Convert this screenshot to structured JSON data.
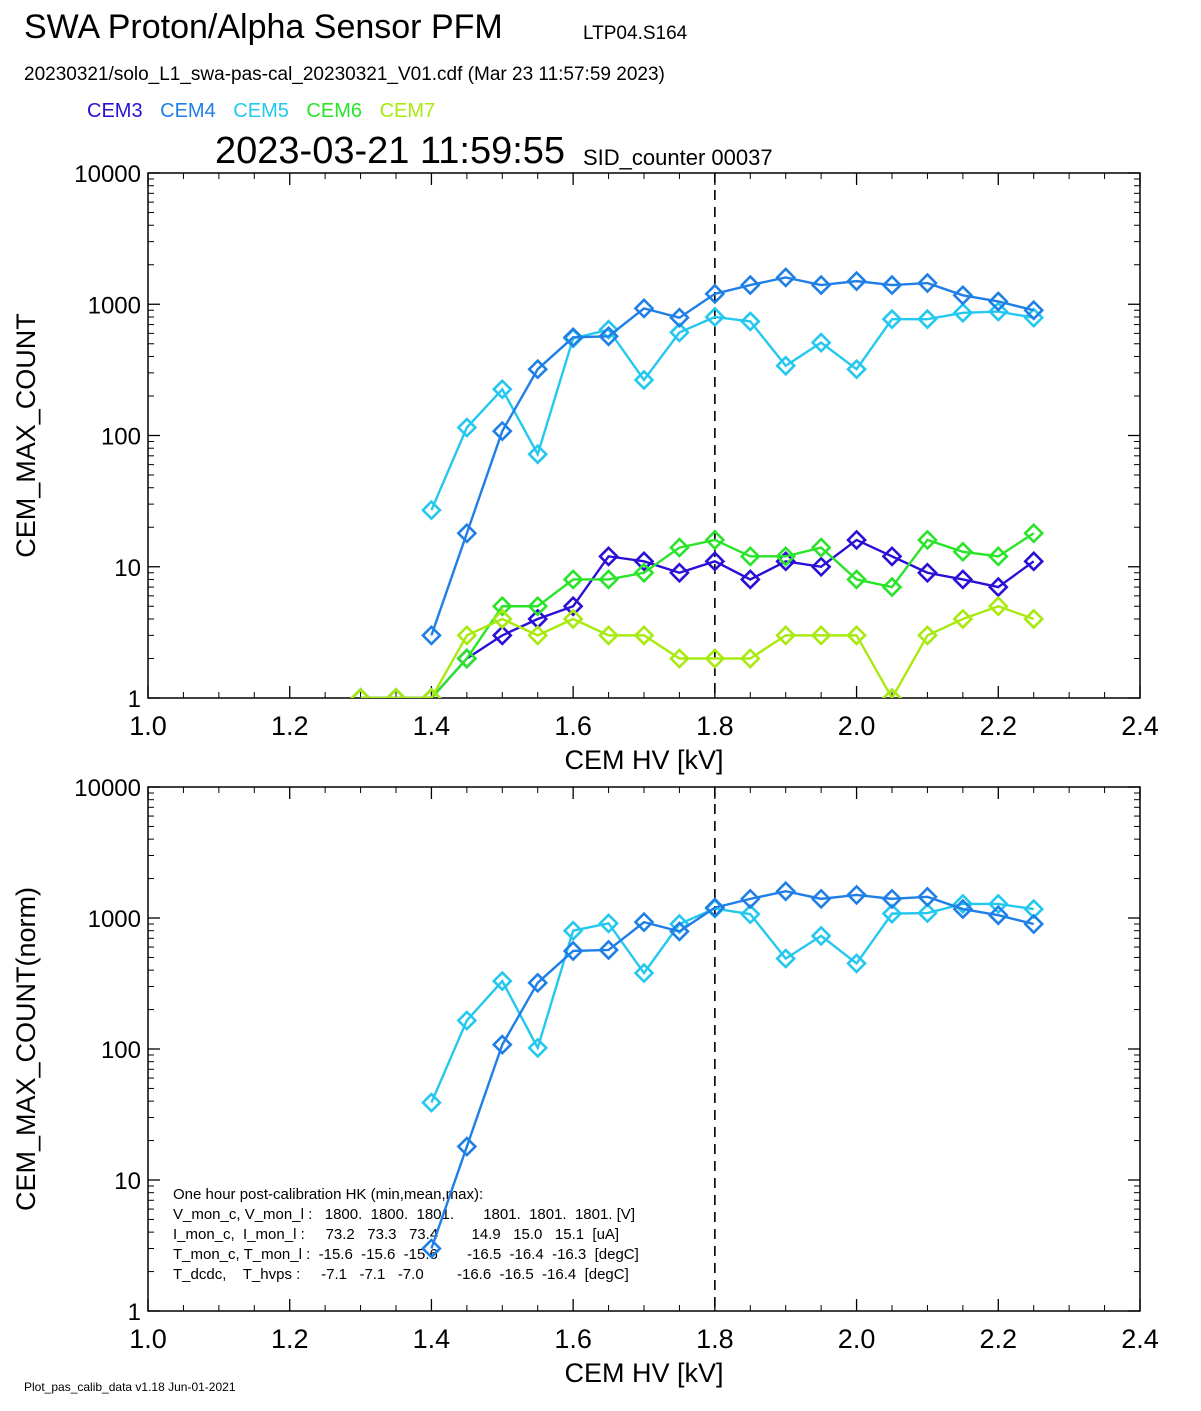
{
  "header": {
    "title": "SWA Proton/Alpha Sensor PFM",
    "run_id": "LTP04.S164",
    "file_line": "20230321/solo_L1_swa-pas-cal_20230321_V01.cdf  (Mar 23 11:57:59 2023)",
    "timestamp": "2023-03-21 11:59:55",
    "sid_counter": "SID_counter 00037"
  },
  "legend": [
    {
      "name": "CEM3",
      "color": "#2a10d6"
    },
    {
      "name": "CEM4",
      "color": "#1f7fe6"
    },
    {
      "name": "CEM5",
      "color": "#24c8ee"
    },
    {
      "name": "CEM6",
      "color": "#2ae42a"
    },
    {
      "name": "CEM7",
      "color": "#a8ea10"
    }
  ],
  "footer": "Plot_pas_calib_data v1.18 Jun-01-2021",
  "chart_data": [
    {
      "type": "line",
      "ylabel": "CEM_MAX_COUNT",
      "xlabel": "CEM HV [kV]",
      "xlim": [
        1.0,
        2.4
      ],
      "ylim": [
        1,
        10000
      ],
      "yscale": "log",
      "xticks": [
        "1.0",
        "1.2",
        "1.4",
        "1.6",
        "1.8",
        "2.0",
        "2.2",
        "2.4"
      ],
      "yticks": [
        "1",
        "10",
        "100",
        "1000",
        "10000"
      ],
      "vline_x": 1.8,
      "x": [
        1.3,
        1.35,
        1.4,
        1.45,
        1.5,
        1.55,
        1.6,
        1.65,
        1.7,
        1.75,
        1.8,
        1.85,
        1.9,
        1.95,
        2.0,
        2.05,
        2.1,
        2.15,
        2.2,
        2.25
      ],
      "series": [
        {
          "name": "CEM3",
          "color": "#2a10d6",
          "values": [
            1,
            1,
            1,
            2,
            3,
            4,
            5,
            12,
            11,
            9,
            11,
            8,
            11,
            10,
            16,
            12,
            9,
            8,
            7,
            11
          ]
        },
        {
          "name": "CEM6",
          "color": "#2ae42a",
          "values": [
            1,
            1,
            1,
            2,
            5,
            5,
            8,
            8,
            9,
            14,
            16,
            12,
            12,
            14,
            8,
            7,
            16,
            13,
            12,
            18
          ]
        },
        {
          "name": "CEM7",
          "color": "#a8ea10",
          "values": [
            1,
            1,
            1,
            3,
            4,
            3,
            4,
            3,
            3,
            2,
            2,
            2,
            3,
            3,
            3,
            1,
            3,
            4,
            5,
            4
          ]
        },
        {
          "name": "CEM5",
          "color": "#24c8ee",
          "values": [
            null,
            null,
            27,
            115,
            225,
            72,
            550,
            640,
            265,
            610,
            800,
            740,
            340,
            510,
            320,
            770,
            770,
            860,
            880,
            790
          ]
        },
        {
          "name": "CEM4",
          "color": "#1f7fe6",
          "values": [
            null,
            null,
            3,
            18,
            108,
            320,
            560,
            570,
            930,
            790,
            1200,
            1400,
            1600,
            1400,
            1500,
            1400,
            1450,
            1170,
            1050,
            900
          ]
        }
      ]
    },
    {
      "type": "line",
      "ylabel": "CEM_MAX_COUNT(norm)",
      "xlabel": "CEM HV [kV]",
      "xlim": [
        1.0,
        2.4
      ],
      "ylim": [
        1,
        10000
      ],
      "yscale": "log",
      "xticks": [
        "1.0",
        "1.2",
        "1.4",
        "1.6",
        "1.8",
        "2.0",
        "2.2",
        "2.4"
      ],
      "yticks": [
        "1",
        "10",
        "100",
        "1000",
        "10000"
      ],
      "vline_x": 1.8,
      "x": [
        1.4,
        1.45,
        1.5,
        1.55,
        1.6,
        1.65,
        1.7,
        1.75,
        1.8,
        1.85,
        1.9,
        1.95,
        2.0,
        2.05,
        2.1,
        2.15,
        2.2,
        2.25
      ],
      "series": [
        {
          "name": "CEM5",
          "color": "#24c8ee",
          "values": [
            39,
            165,
            330,
            102,
            800,
            910,
            380,
            900,
            1180,
            1070,
            490,
            730,
            450,
            1080,
            1090,
            1280,
            1280,
            1170
          ]
        },
        {
          "name": "CEM4",
          "color": "#1f7fe6",
          "values": [
            3,
            18,
            108,
            320,
            560,
            570,
            930,
            790,
            1200,
            1400,
            1600,
            1400,
            1500,
            1400,
            1450,
            1170,
            1050,
            900
          ]
        }
      ],
      "annotation": [
        "One hour post-calibration HK (min,mean,max):",
        "V_mon_c, V_mon_l :   1800.  1800.  1801.       1801.  1801.  1801. [V]",
        "I_mon_c,  I_mon_l :     73.2   73.3   73.4        14.9   15.0   15.1  [uA]",
        "T_mon_c, T_mon_l :  -15.6  -15.6  -15.6       -16.5  -16.4  -16.3  [degC]",
        "T_dcdc,    T_hvps :     -7.1   -7.1   -7.0        -16.6  -16.5  -16.4  [degC]"
      ]
    }
  ]
}
